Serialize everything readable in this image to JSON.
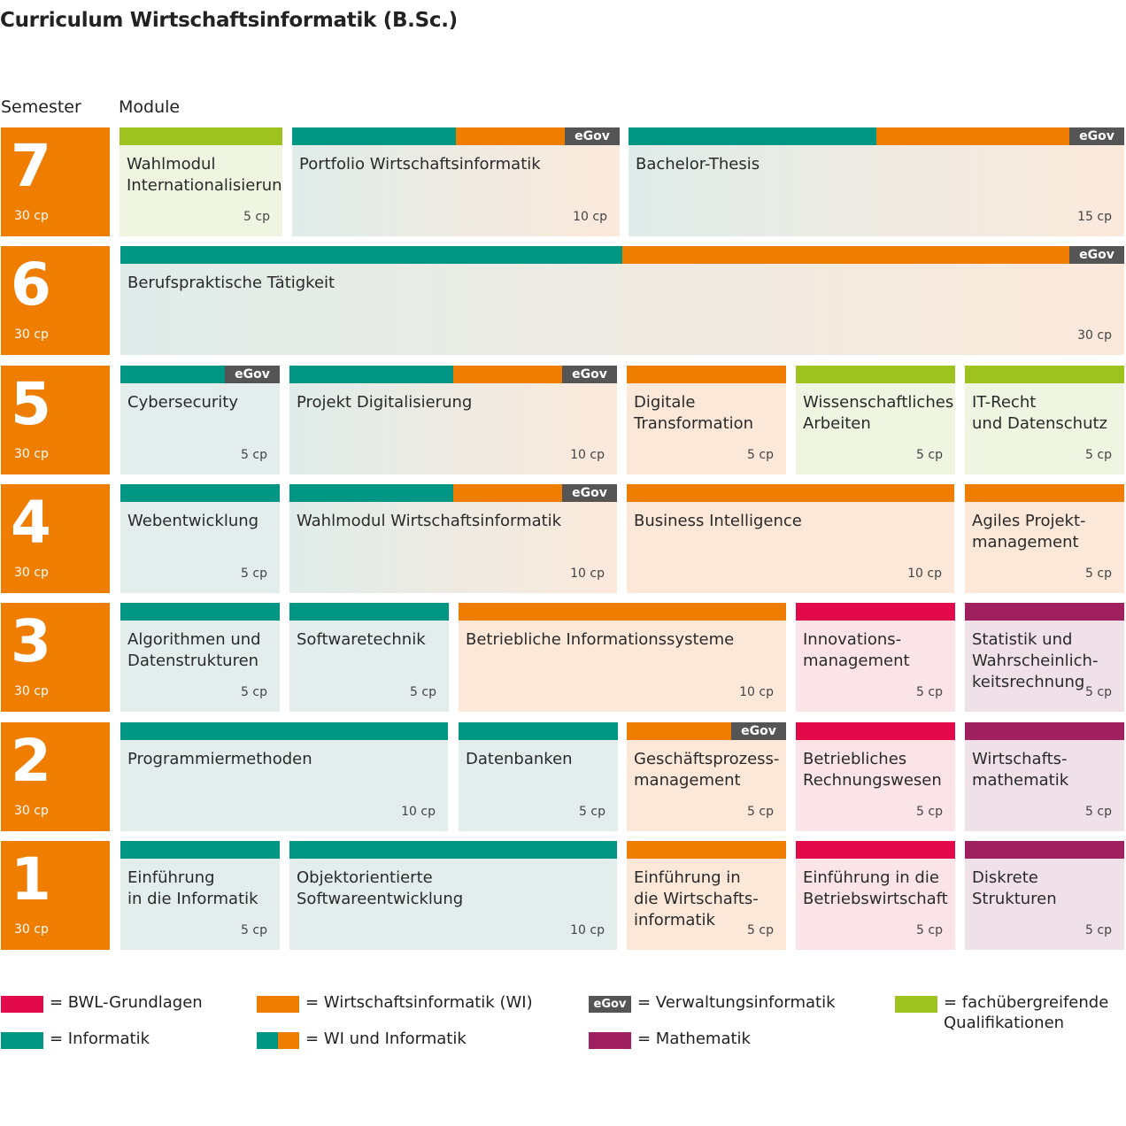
{
  "title": "Curriculum Wirtschaftsinformatik (B.Sc.)",
  "headers": {
    "semester": "Semester",
    "module": "Module"
  },
  "colors": {
    "bwl": "#e30a4c",
    "wi": "#ee7d00",
    "inf": "#009684",
    "mat": "#a01f5e",
    "fach": "#9ec31e",
    "egov": "#555555"
  },
  "egov_label": "eGov",
  "semesters": [
    {
      "num": "7",
      "cp": "30 cp"
    },
    {
      "num": "6",
      "cp": "30 cp"
    },
    {
      "num": "5",
      "cp": "30 cp"
    },
    {
      "num": "4",
      "cp": "30 cp"
    },
    {
      "num": "3",
      "cp": "30 cp"
    },
    {
      "num": "2",
      "cp": "30 cp"
    },
    {
      "num": "1",
      "cp": "30 cp"
    }
  ],
  "modules": [
    {
      "name": "Wahlmodul\nInternationalisierung",
      "cp": "5 cp",
      "category": "fach"
    },
    {
      "name": "Portfolio Wirtschaftsinformatik",
      "cp": "10 cp",
      "category": "mix",
      "egov": true
    },
    {
      "name": "Bachelor-Thesis",
      "cp": "15 cp",
      "category": "mix",
      "egov": true
    },
    {
      "name": "Berufspraktische Tätigkeit",
      "cp": "30 cp",
      "category": "mix",
      "egov": true
    },
    {
      "name": "Cybersecurity",
      "cp": "5 cp",
      "category": "inf",
      "egov": true
    },
    {
      "name": "Projekt Digitalisierung",
      "cp": "10 cp",
      "category": "mix",
      "egov": true
    },
    {
      "name": "Digitale\nTransformation",
      "cp": "5 cp",
      "category": "wi"
    },
    {
      "name": "Wissenschaftliches\nArbeiten",
      "cp": "5 cp",
      "category": "fach"
    },
    {
      "name": "IT-Recht\nund Datenschutz",
      "cp": "5 cp",
      "category": "fach"
    },
    {
      "name": "Webentwicklung",
      "cp": "5 cp",
      "category": "inf"
    },
    {
      "name": "Wahlmodul Wirtschaftsinformatik",
      "cp": "10 cp",
      "category": "mix",
      "egov": true
    },
    {
      "name": "Business Intelligence",
      "cp": "10 cp",
      "category": "wi"
    },
    {
      "name": "Agiles Projekt-\nmanagement",
      "cp": "5 cp",
      "category": "wi"
    },
    {
      "name": "Algorithmen und\nDatenstrukturen",
      "cp": "5 cp",
      "category": "inf"
    },
    {
      "name": "Softwaretechnik",
      "cp": "5 cp",
      "category": "inf"
    },
    {
      "name": "Betriebliche Informationssysteme",
      "cp": "10 cp",
      "category": "wi"
    },
    {
      "name": "Innovations-\nmanagement",
      "cp": "5 cp",
      "category": "bwl"
    },
    {
      "name": "Statistik und\nWahrscheinlich-\nkeitsrechnung",
      "cp": "5 cp",
      "category": "mat"
    },
    {
      "name": "Programmiermethoden",
      "cp": "10 cp",
      "category": "inf"
    },
    {
      "name": "Datenbanken",
      "cp": "5 cp",
      "category": "inf"
    },
    {
      "name": "Geschäftsprozess-\nmanagement",
      "cp": "5 cp",
      "category": "wi",
      "egov": true
    },
    {
      "name": "Betriebliches\nRechnungswesen",
      "cp": "5 cp",
      "category": "bwl"
    },
    {
      "name": "Wirtschafts-\nmathematik",
      "cp": "5 cp",
      "category": "mat"
    },
    {
      "name": "Einführung\nin die Informatik",
      "cp": "5 cp",
      "category": "inf"
    },
    {
      "name": "Objektorientierte\nSoftwareentwicklung",
      "cp": "10 cp",
      "category": "inf"
    },
    {
      "name": "Einführung in\ndie Wirtschafts-\ninformatik",
      "cp": "5 cp",
      "category": "wi"
    },
    {
      "name": "Einführung in die\nBetriebswirtschaft",
      "cp": "5 cp",
      "category": "bwl"
    },
    {
      "name": "Diskrete\nStrukturen",
      "cp": "5 cp",
      "category": "mat"
    }
  ],
  "legend": [
    {
      "category": "bwl",
      "label": "= BWL-Grundlagen"
    },
    {
      "category": "wi",
      "label": "= Wirtschaftsinformatik (WI)"
    },
    {
      "category": "egov",
      "label": "= Verwaltungsinformatik"
    },
    {
      "category": "fach",
      "label": "= fachübergreifende\n   Qualifikationen"
    },
    {
      "category": "inf",
      "label": "= Informatik"
    },
    {
      "category": "mix",
      "label": "= WI und Informatik"
    },
    {
      "category": "mat",
      "label": "= Mathematik"
    }
  ]
}
